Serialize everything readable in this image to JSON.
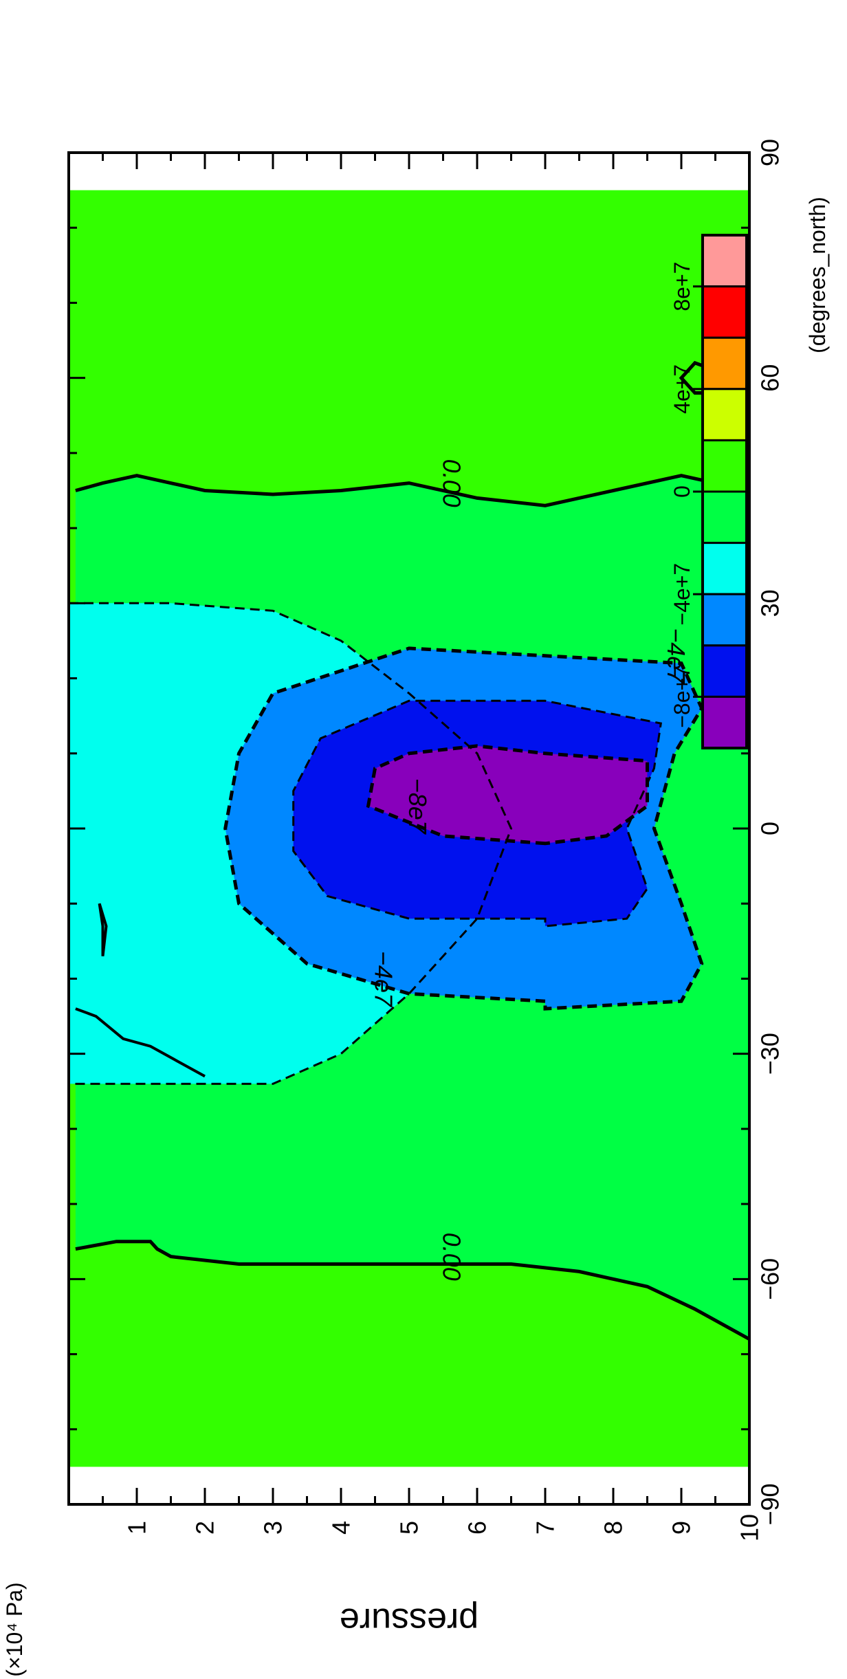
{
  "chart_data": {
    "type": "heatmap",
    "description_units": {
      "x_variable": "latitude",
      "x_unit_label": "(degrees_north)",
      "y_variable_label": "pressure",
      "y_unit_label": "(×10⁴ Pa)"
    },
    "xlim": [
      -90,
      90
    ],
    "ylim": [
      0,
      10
    ],
    "y_inverted": true,
    "x_ticks": [
      -90,
      -60,
      -30,
      0,
      30,
      60,
      90
    ],
    "y_ticks": [
      1,
      2,
      3,
      4,
      5,
      6,
      7,
      8,
      9,
      10
    ],
    "colorbar": {
      "levels": [
        {
          "bound": 80000000.0,
          "color": "#ff9999"
        },
        {
          "bound": 60000000.0,
          "color": "#ff0000"
        },
        {
          "bound": 40000000.0,
          "color": "#ff9900"
        },
        {
          "bound": 20000000.0,
          "color": "#ccff00"
        },
        {
          "bound": 0,
          "color": "#33ff00"
        },
        {
          "bound": -20000000.0,
          "color": "#00ff44"
        },
        {
          "bound": -40000000.0,
          "color": "#00ffee"
        },
        {
          "bound": -60000000.0,
          "color": "#0088ff"
        },
        {
          "bound": -80000000.0,
          "color": "#0011ee"
        },
        {
          "bound": -100000000.0,
          "color": "#8800bb"
        }
      ],
      "tick_labels": [
        "8e+7",
        "4e+7",
        "0",
        "−4e+7",
        "−8e+7"
      ],
      "tick_values": [
        80000000.0,
        40000000.0,
        0,
        -40000000.0,
        -80000000.0
      ]
    },
    "contour_labels": [
      {
        "text": "0.00",
        "lat": 46,
        "p": 5.5
      },
      {
        "text": "0.00",
        "lat": -57,
        "p": 5.5
      },
      {
        "text": "−4e7",
        "lat": -20,
        "p": 4.5
      },
      {
        "text": "−4e7",
        "lat": 23,
        "p": 8.8
      },
      {
        "text": "−8e7",
        "lat": 3,
        "p": 5.0
      }
    ],
    "regions": {
      "zero_line_north": [
        [
          45,
          0.1
        ],
        [
          46,
          0.5
        ],
        [
          47,
          1.0
        ],
        [
          45,
          2.0
        ],
        [
          44.5,
          3.0
        ],
        [
          45,
          4.0
        ],
        [
          46,
          5.0
        ],
        [
          44,
          6.0
        ],
        [
          43,
          7.0
        ],
        [
          45,
          8.0
        ],
        [
          47,
          9.0
        ],
        [
          45,
          10.0
        ]
      ],
      "zero_line_south": [
        [
          -56,
          0.1
        ],
        [
          -55,
          0.7
        ],
        [
          -55,
          1.2
        ],
        [
          -56,
          1.3
        ],
        [
          -57,
          1.5
        ],
        [
          -58,
          2.5
        ],
        [
          -58,
          3.5
        ],
        [
          -58,
          4.5
        ],
        [
          -58,
          5.5
        ],
        [
          -58,
          6.5
        ],
        [
          -59,
          7.5
        ],
        [
          -61,
          8.5
        ],
        [
          -64,
          9.2
        ],
        [
          -68,
          10.0
        ]
      ],
      "contour_0_southern_edge": [
        [
          -24,
          0.1
        ],
        [
          -25,
          0.4
        ],
        [
          -28,
          0.8
        ],
        [
          -29,
          1.2
        ],
        [
          -31,
          1.6
        ],
        [
          -33,
          2.0
        ]
      ],
      "contour_neg2e7": [
        [
          30,
          0.0
        ],
        [
          30,
          1.5
        ],
        [
          29,
          3.0
        ],
        [
          25,
          4.0
        ],
        [
          18,
          5.0
        ],
        [
          10,
          6.0
        ],
        [
          0,
          6.5
        ],
        [
          -12,
          6.0
        ],
        [
          -22,
          5.0
        ],
        [
          -30,
          4.0
        ],
        [
          -34,
          3.0
        ],
        [
          -34,
          1.5
        ],
        [
          -34,
          0.0
        ]
      ],
      "contour_neg4e7": [
        [
          -23,
          7.0
        ],
        [
          -22,
          5.0
        ],
        [
          -18,
          3.5
        ],
        [
          -10,
          2.5
        ],
        [
          0,
          2.3
        ],
        [
          10,
          2.5
        ],
        [
          18,
          3.0
        ],
        [
          24,
          5.0
        ],
        [
          23,
          7.0
        ],
        [
          22,
          9.0
        ],
        [
          16,
          9.3
        ],
        [
          10,
          8.9
        ],
        [
          0,
          8.6
        ],
        [
          -10,
          9.0
        ],
        [
          -18,
          9.3
        ],
        [
          -23,
          9.0
        ],
        [
          -24,
          7.0
        ]
      ],
      "contour_neg6e7_filled": [
        [
          -12,
          7.0
        ],
        [
          -12,
          5.0
        ],
        [
          -9,
          3.8
        ],
        [
          -3,
          3.3
        ],
        [
          5,
          3.3
        ],
        [
          12,
          3.7
        ],
        [
          17,
          5.0
        ],
        [
          17,
          7.0
        ],
        [
          14,
          8.7
        ],
        [
          8,
          8.6
        ],
        [
          0,
          8.2
        ],
        [
          -8,
          8.5
        ],
        [
          -12,
          8.2
        ],
        [
          -13,
          7.0
        ]
      ],
      "contour_neg8e7": [
        [
          -2,
          7.0
        ],
        [
          -1,
          5.5
        ],
        [
          3,
          4.4
        ],
        [
          8,
          4.5
        ],
        [
          10,
          5.0
        ],
        [
          11,
          6.0
        ],
        [
          10,
          7.0
        ],
        [
          9,
          8.5
        ],
        [
          3,
          8.5
        ],
        [
          -1,
          7.9
        ],
        [
          -2,
          7.0
        ]
      ],
      "small_loop_north": [
        [
          58,
          9.2
        ],
        [
          60,
          9.0
        ],
        [
          62,
          9.2
        ],
        [
          61,
          9.5
        ],
        [
          58,
          9.4
        ]
      ],
      "small_loop_south": [
        [
          -10,
          0.45
        ],
        [
          -13,
          0.5
        ],
        [
          -17,
          0.5
        ],
        [
          -13,
          0.55
        ],
        [
          -10,
          0.45
        ]
      ]
    }
  }
}
